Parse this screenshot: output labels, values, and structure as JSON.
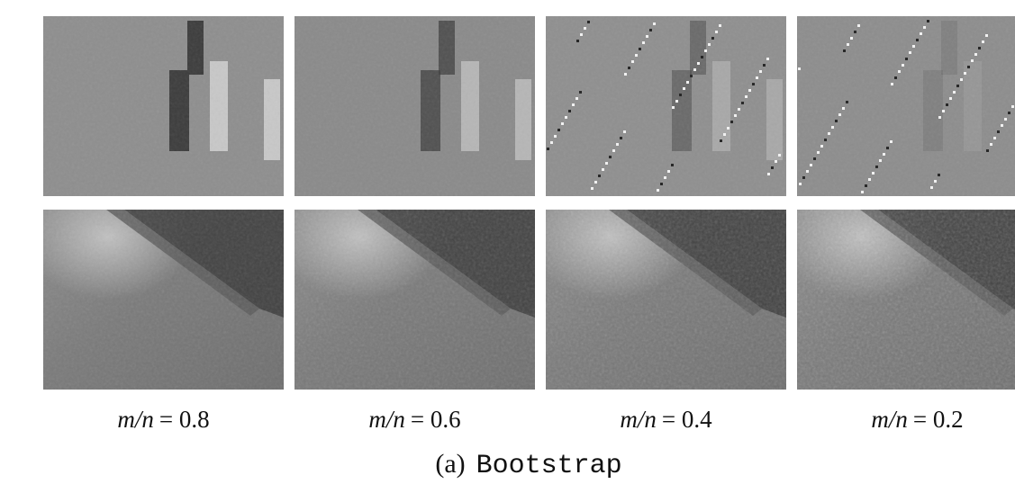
{
  "figure": {
    "panels": [
      {
        "variable": "m/n",
        "value": "= 0.8"
      },
      {
        "variable": "m/n",
        "value": "= 0.6"
      },
      {
        "variable": "m/n",
        "value": "= 0.4"
      },
      {
        "variable": "m/n",
        "value": "= 0.2"
      }
    ],
    "caption": {
      "label": "(a)",
      "name": "Bootstrap"
    }
  }
}
